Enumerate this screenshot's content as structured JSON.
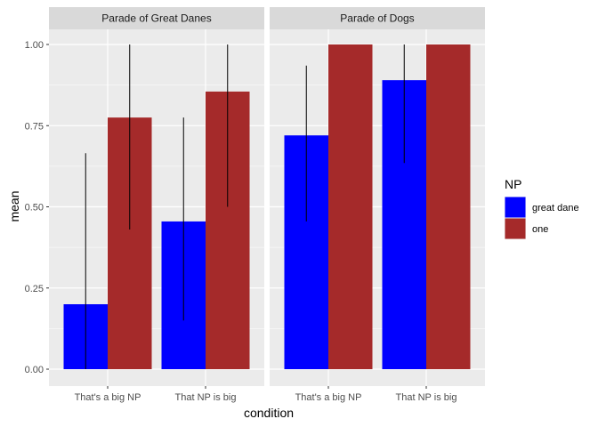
{
  "chart_data": {
    "type": "bar",
    "title": "",
    "xlabel": "condition",
    "ylabel": "mean",
    "ylim": [
      0,
      1.05
    ],
    "yticks": [
      "0.00",
      "0.25",
      "0.50",
      "0.75",
      "1.00"
    ],
    "ytick_values": [
      0,
      0.25,
      0.5,
      0.75,
      1.0
    ],
    "grid": true,
    "legend": {
      "title": "NP",
      "position": "right",
      "entries": [
        {
          "name": "great dane",
          "color": "#0000ff"
        },
        {
          "name": "one",
          "color": "#a52a2a"
        }
      ]
    },
    "categories": [
      "That's a big NP",
      "That NP is big"
    ],
    "facets": [
      {
        "title": "Parade of Great Danes",
        "series": [
          {
            "name": "great dane",
            "color": "#0000ff",
            "values": [
              0.2,
              0.455
            ],
            "err_low": [
              0.0,
              0.15
            ],
            "err_high": [
              0.665,
              0.775
            ]
          },
          {
            "name": "one",
            "color": "#a52a2a",
            "values": [
              0.775,
              0.855
            ],
            "err_low": [
              0.43,
              0.5
            ],
            "err_high": [
              1.0,
              1.0
            ]
          }
        ]
      },
      {
        "title": "Parade of Dogs",
        "series": [
          {
            "name": "great dane",
            "color": "#0000ff",
            "values": [
              0.72,
              0.89
            ],
            "err_low": [
              0.455,
              0.635
            ],
            "err_high": [
              0.935,
              1.0
            ]
          },
          {
            "name": "one",
            "color": "#a52a2a",
            "values": [
              1.0,
              1.0
            ],
            "err_low": [
              null,
              null
            ],
            "err_high": [
              null,
              null
            ]
          }
        ]
      }
    ]
  }
}
